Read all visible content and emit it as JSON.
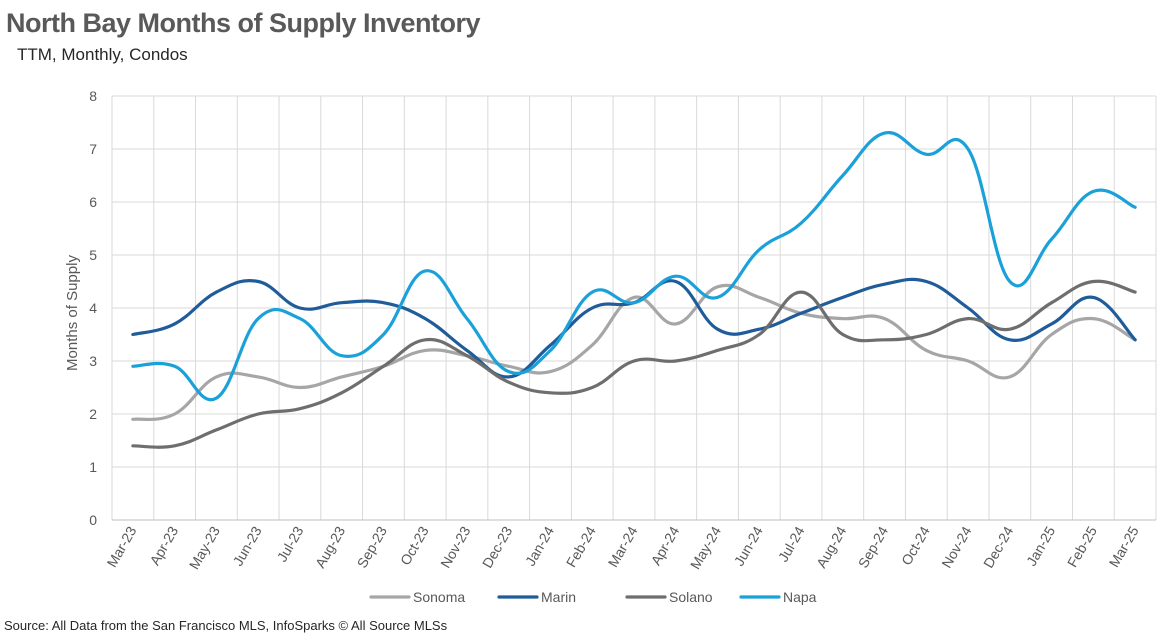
{
  "title": "North Bay Months of Supply Inventory",
  "subtitle": "TTM, Monthly, Condos",
  "source": "Source: All Data from the San Francisco MLS, InfoSparks © All Source MLSs",
  "chart_data": {
    "type": "line",
    "ylabel": "Months of Supply",
    "ylim": [
      0,
      8
    ],
    "yticks": [
      0,
      1,
      2,
      3,
      4,
      5,
      6,
      7,
      8
    ],
    "grid": true,
    "legend_position": "bottom",
    "categories": [
      "Mar-23",
      "Apr-23",
      "May-23",
      "Jun-23",
      "Jul-23",
      "Aug-23",
      "Sep-23",
      "Oct-23",
      "Nov-23",
      "Dec-23",
      "Jan-24",
      "Feb-24",
      "Mar-24",
      "Apr-24",
      "May-24",
      "Jun-24",
      "Jul-24",
      "Aug-24",
      "Sep-24",
      "Oct-24",
      "Nov-24",
      "Dec-24",
      "Jan-25",
      "Feb-25",
      "Mar-25"
    ],
    "series": [
      {
        "name": "Sonoma",
        "color": "#A6A6A6",
        "values": [
          1.9,
          2.0,
          2.7,
          2.7,
          2.5,
          2.7,
          2.9,
          3.2,
          3.1,
          2.9,
          2.8,
          3.3,
          4.2,
          3.7,
          4.4,
          4.2,
          3.9,
          3.8,
          3.8,
          3.2,
          3.0,
          2.7,
          3.5,
          3.8,
          3.4
        ]
      },
      {
        "name": "Marin",
        "color": "#1F5C99",
        "values": [
          3.5,
          3.7,
          4.3,
          4.5,
          4.0,
          4.1,
          4.1,
          3.8,
          3.2,
          2.7,
          3.3,
          4.0,
          4.1,
          4.5,
          3.6,
          3.6,
          3.9,
          4.2,
          4.45,
          4.5,
          4.0,
          3.4,
          3.7,
          4.2,
          3.4
        ]
      },
      {
        "name": "Solano",
        "color": "#6E6E6E",
        "values": [
          1.4,
          1.4,
          1.7,
          2.0,
          2.1,
          2.4,
          2.9,
          3.4,
          3.1,
          2.6,
          2.4,
          2.5,
          3.0,
          3.0,
          3.2,
          3.5,
          4.3,
          3.5,
          3.4,
          3.5,
          3.8,
          3.6,
          4.1,
          4.5,
          4.3
        ]
      },
      {
        "name": "Napa",
        "color": "#1BA1D9",
        "values": [
          2.9,
          2.9,
          2.3,
          3.8,
          3.8,
          3.1,
          3.5,
          4.7,
          3.8,
          2.8,
          3.2,
          4.3,
          4.1,
          4.6,
          4.2,
          5.1,
          5.6,
          6.5,
          7.3,
          6.9,
          7.0,
          4.5,
          5.3,
          6.2,
          5.9
        ]
      }
    ]
  }
}
